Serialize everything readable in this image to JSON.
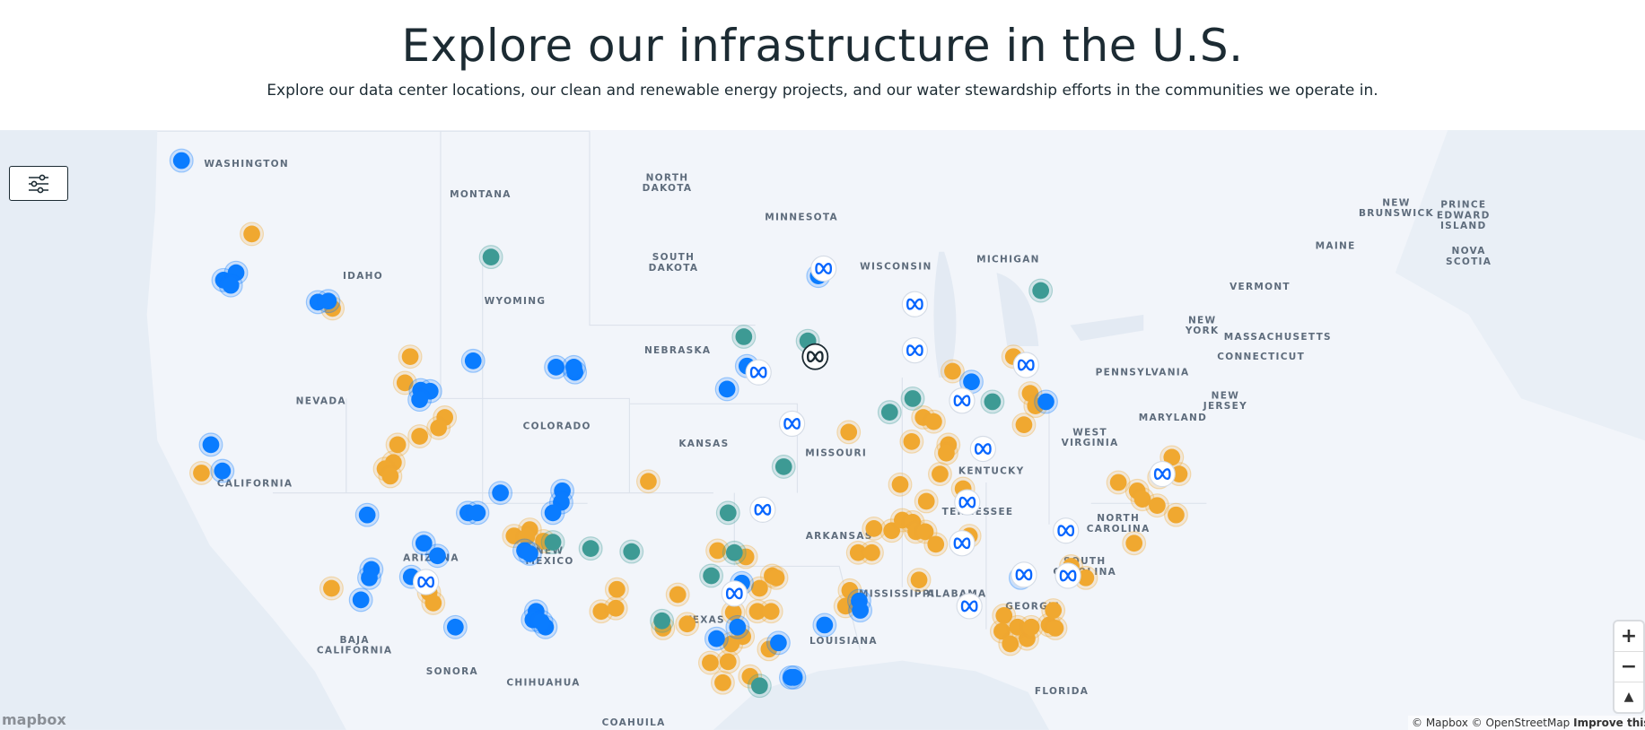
{
  "header": {
    "title": "Explore our infrastructure in the U.S.",
    "subtitle": "Explore our data center locations, our clean and renewable energy projects, and our water stewardship efforts in the communities we operate in."
  },
  "map": {
    "labels": [
      {
        "lines": [
          "WASHINGTON"
        ]
      },
      {
        "lines": [
          "MONTANA"
        ]
      },
      {
        "lines": [
          "NORTH",
          "DAKOTA"
        ]
      },
      {
        "lines": [
          "MINNESOTA"
        ]
      },
      {
        "lines": [
          "SOUTH",
          "DAKOTA"
        ]
      },
      {
        "lines": [
          "IDAHO"
        ]
      },
      {
        "lines": [
          "WYOMING"
        ]
      },
      {
        "lines": [
          "WISCONSIN"
        ]
      },
      {
        "lines": [
          "MICHIGAN"
        ]
      },
      {
        "lines": [
          "NEBRASKA"
        ]
      },
      {
        "lines": [
          "NEVADA"
        ]
      },
      {
        "lines": [
          "COLORADO"
        ]
      },
      {
        "lines": [
          "KANSAS"
        ]
      },
      {
        "lines": [
          "MISSOURI"
        ]
      },
      {
        "lines": [
          "CALIFORNIA"
        ]
      },
      {
        "lines": [
          "KENTUCKY"
        ]
      },
      {
        "lines": [
          "WEST",
          "VIRGINIA"
        ]
      },
      {
        "lines": [
          "PENNSYLVANIA"
        ]
      },
      {
        "lines": [
          "NEW",
          "YORK"
        ]
      },
      {
        "lines": [
          "VERMONT"
        ]
      },
      {
        "lines": [
          "MAINE"
        ]
      },
      {
        "lines": [
          "NEW",
          "BRUNSWICK"
        ]
      },
      {
        "lines": [
          "PRINCE",
          "EDWARD",
          "ISLAND"
        ]
      },
      {
        "lines": [
          "NOVA",
          "SCOTIA"
        ]
      },
      {
        "lines": [
          "MASSACHUSETTS"
        ]
      },
      {
        "lines": [
          "CONNECTICUT"
        ]
      },
      {
        "lines": [
          "NEW",
          "JERSEY"
        ]
      },
      {
        "lines": [
          "MARYLAND"
        ]
      },
      {
        "lines": [
          "TENNESSEE"
        ]
      },
      {
        "lines": [
          "NORTH",
          "CAROLINA"
        ]
      },
      {
        "lines": [
          "SOUTH",
          "CAROLINA"
        ]
      },
      {
        "lines": [
          "ARKANSAS"
        ]
      },
      {
        "lines": [
          "ARIZONA"
        ]
      },
      {
        "lines": [
          "NEW",
          "MEXICO"
        ]
      },
      {
        "lines": [
          "TEXAS"
        ]
      },
      {
        "lines": [
          "MISSISSIPPI"
        ]
      },
      {
        "lines": [
          "ALABAMA"
        ]
      },
      {
        "lines": [
          "GEORGIA"
        ]
      },
      {
        "lines": [
          "LOUISIANA"
        ]
      },
      {
        "lines": [
          "FLORIDA"
        ]
      },
      {
        "lines": [
          "BAJA",
          "CALIFORNIA"
        ]
      },
      {
        "lines": [
          "SONORA"
        ]
      },
      {
        "lines": [
          "CHIHUAHUA"
        ]
      },
      {
        "lines": [
          "COAHUILA"
        ]
      }
    ],
    "logo": "mapbox",
    "attribution": "© Mapbox © OpenStreetMap",
    "improve_link": "Improve this map"
  }
}
